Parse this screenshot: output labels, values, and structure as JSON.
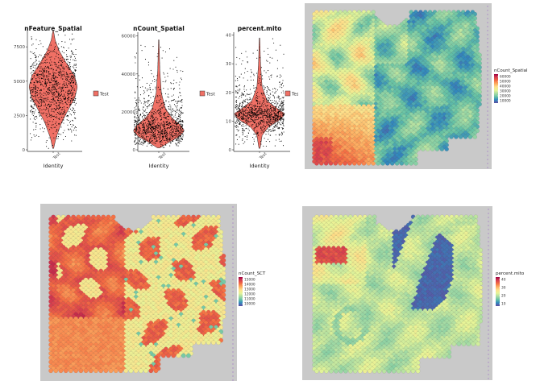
{
  "chart_data": [
    {
      "type": "violin",
      "title": "nFeature_Spatial",
      "xlabel": "Identity",
      "x_tick": "Test",
      "yticks": [
        0,
        2500,
        5000,
        7500
      ],
      "ylim": [
        0,
        8800
      ],
      "legend": "Test",
      "median": 4700,
      "violin_profile": [
        [
          100,
          0.02
        ],
        [
          900,
          0.12
        ],
        [
          2000,
          0.35
        ],
        [
          3000,
          0.65
        ],
        [
          3800,
          0.9
        ],
        [
          4600,
          1.0
        ],
        [
          5400,
          0.88
        ],
        [
          6300,
          0.55
        ],
        [
          7200,
          0.25
        ],
        [
          8000,
          0.08
        ],
        [
          8700,
          0.01
        ]
      ],
      "fill_color": "#f07065"
    },
    {
      "type": "violin",
      "title": "nCount_Spatial",
      "xlabel": "Identity",
      "x_tick": "Test",
      "yticks": [
        0,
        20000,
        40000,
        60000
      ],
      "ylim": [
        0,
        62000
      ],
      "legend": "Test",
      "median": 11000,
      "violin_profile": [
        [
          1000,
          0.05
        ],
        [
          4000,
          0.4
        ],
        [
          7000,
          0.8
        ],
        [
          10000,
          1.0
        ],
        [
          13000,
          0.85
        ],
        [
          17000,
          0.5
        ],
        [
          22000,
          0.25
        ],
        [
          30000,
          0.1
        ],
        [
          42000,
          0.04
        ],
        [
          58000,
          0.01
        ]
      ],
      "fill_color": "#f07065"
    },
    {
      "type": "violin",
      "title": "percent.mito",
      "xlabel": "Identity",
      "x_tick": "Test",
      "yticks": [
        0,
        10,
        20,
        30,
        40
      ],
      "ylim": [
        0,
        41
      ],
      "legend": "Test",
      "median": 12.5,
      "violin_profile": [
        [
          0.5,
          0.02
        ],
        [
          2,
          0.05
        ],
        [
          5,
          0.1
        ],
        [
          8,
          0.35
        ],
        [
          10.5,
          0.8
        ],
        [
          12.5,
          1.0
        ],
        [
          14,
          0.75
        ],
        [
          17,
          0.3
        ],
        [
          22,
          0.1
        ],
        [
          30,
          0.04
        ],
        [
          39,
          0.01
        ]
      ],
      "fill_color": "#f07065"
    },
    {
      "type": "spatial_heatmap",
      "legend_title": "nCount_Spatial",
      "legend_ticks": [
        "60000",
        "50000",
        "40000",
        "30000",
        "20000",
        "10000"
      ],
      "colorscale": [
        "#5e4fa2",
        "#3288bd",
        "#66c2a5",
        "#abdda4",
        "#e6f598",
        "#fee08b",
        "#fdae61",
        "#f46d43",
        "#d53e4f",
        "#9e0142"
      ],
      "pattern": "low_right_high_left_bottom"
    },
    {
      "type": "spatial_heatmap",
      "legend_title": "nCount_SCT",
      "legend_ticks": [
        "15000",
        "14000",
        "13000",
        "12000",
        "11000",
        "10000"
      ],
      "colorscale": [
        "#5e4fa2",
        "#3288bd",
        "#66c2a5",
        "#abdda4",
        "#e6f598",
        "#fee08b",
        "#fdae61",
        "#f46d43",
        "#d53e4f",
        "#9e0142"
      ],
      "pattern": "high_left_mixed_right"
    },
    {
      "type": "spatial_heatmap",
      "legend_title": "percent.mito",
      "legend_ticks": [
        "40",
        "30",
        "20",
        "10"
      ],
      "colorscale": [
        "#5e4fa2",
        "#3288bd",
        "#66c2a5",
        "#abdda4",
        "#e6f598",
        "#fee08b",
        "#fdae61",
        "#f46d43",
        "#d53e4f",
        "#9e0142"
      ],
      "pattern": "mid_with_low_band"
    }
  ]
}
